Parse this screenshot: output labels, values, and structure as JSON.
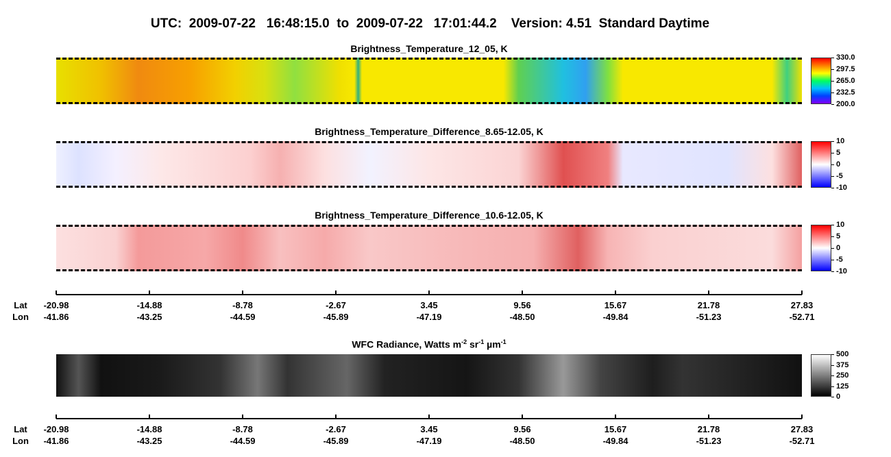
{
  "title": "UTC:  2009-07-22   16:48:15.0  to  2009-07-22   17:01:44.2    Version: 4.51  Standard Daytime",
  "panels": [
    {
      "title": "Brightness_Temperature_12_05, K",
      "colorbar": [
        "330.0",
        "297.5",
        "265.0",
        "232.5",
        "200.0"
      ]
    },
    {
      "title": "Brightness_Temperature_Difference_8.65-12.05, K",
      "colorbar": [
        "10",
        "5",
        "0",
        "-5",
        "-10"
      ]
    },
    {
      "title": "Brightness_Temperature_Difference_10.6-12.05, K",
      "colorbar": [
        "10",
        "5",
        "0",
        "-5",
        "-10"
      ]
    },
    {
      "title_parts": [
        {
          "text": "WFC Radiance, Watts m"
        },
        {
          "text": "-2",
          "sup": true
        },
        {
          "text": " sr"
        },
        {
          "text": "-1",
          "sup": true
        },
        {
          "text": " µm"
        },
        {
          "text": "-1",
          "sup": true
        }
      ],
      "colorbar": [
        "500",
        "375",
        "250",
        "125",
        "0"
      ]
    }
  ],
  "axes": [
    {
      "lat_label": "Lat",
      "lon_label": "Lon",
      "lat": [
        "-20.98",
        "-14.88",
        "-8.78",
        "-2.67",
        "3.45",
        "9.56",
        "15.67",
        "21.78",
        "27.83"
      ],
      "lon": [
        "-41.86",
        "-43.25",
        "-44.59",
        "-45.89",
        "-47.19",
        "-48.50",
        "-49.84",
        "-51.23",
        "-52.71"
      ]
    },
    {
      "lat_label": "Lat",
      "lon_label": "Lon",
      "lat": [
        "-20.98",
        "-14.88",
        "-8.78",
        "-2.67",
        "3.45",
        "9.56",
        "15.67",
        "21.78",
        "27.83"
      ],
      "lon": [
        "-41.86",
        "-43.25",
        "-44.59",
        "-45.89",
        "-47.19",
        "-48.50",
        "-49.84",
        "-51.23",
        "-52.71"
      ]
    }
  ]
}
